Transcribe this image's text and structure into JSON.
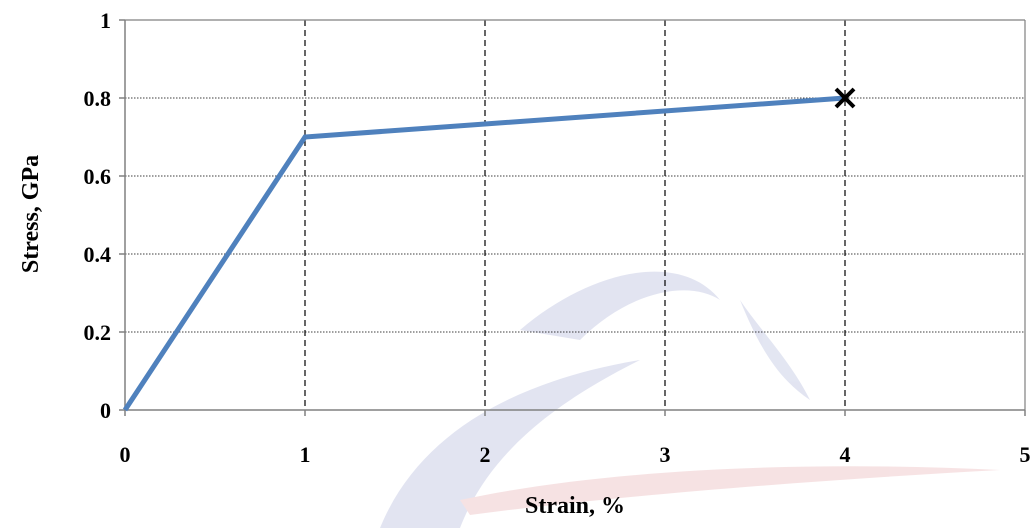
{
  "chart_data": {
    "type": "line",
    "title": "",
    "xlabel": "Strain, %",
    "ylabel": "Stress, GPa",
    "xlim": [
      0,
      5
    ],
    "ylim": [
      0,
      1
    ],
    "x_ticks": [
      "0",
      "1",
      "2",
      "3",
      "4",
      "5"
    ],
    "y_ticks": [
      "0",
      "0.2",
      "0.4",
      "0.6",
      "0.8",
      "1"
    ],
    "series": [
      {
        "x": [
          0,
          1,
          4
        ],
        "y": [
          0,
          0.7,
          0.8
        ],
        "color": "#4F81BD"
      }
    ],
    "failure_marker": {
      "x": 4,
      "y": 0.8,
      "symbol": "×"
    },
    "grid": {
      "x": "dashed",
      "y": "dotted"
    },
    "legend": "none"
  }
}
